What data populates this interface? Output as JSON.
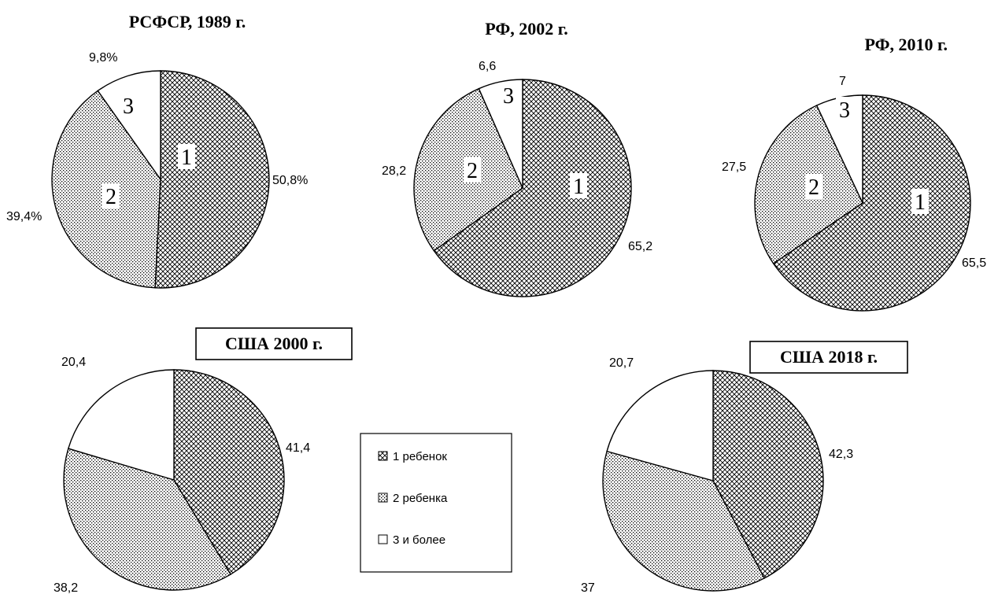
{
  "chart_data": [
    {
      "type": "pie",
      "title": "РСФСР,  1989 г.",
      "title_boxed": false,
      "categories": [
        "1 ребенок",
        "2 ребенка",
        "3 и более"
      ],
      "values": [
        50.8,
        39.4,
        9.8
      ],
      "data_labels": [
        "50,8%",
        "39,4%",
        "9,8%"
      ],
      "slice_numbers": [
        "1",
        "2",
        "3"
      ]
    },
    {
      "type": "pie",
      "title": "РФ, 2002  г.",
      "title_boxed": false,
      "categories": [
        "1 ребенок",
        "2 ребенка",
        "3 и более"
      ],
      "values": [
        65.2,
        28.2,
        6.6
      ],
      "data_labels": [
        "65,2",
        "28,2",
        "6,6"
      ],
      "slice_numbers": [
        "1",
        "2",
        "3"
      ]
    },
    {
      "type": "pie",
      "title": "РФ, 2010  г.",
      "title_boxed": false,
      "categories": [
        "1 ребенок",
        "2 ребенка",
        "3 и более"
      ],
      "values": [
        65.5,
        27.5,
        7
      ],
      "data_labels": [
        "65,5",
        "27,5",
        "7"
      ],
      "slice_numbers": [
        "1",
        "2",
        "3"
      ]
    },
    {
      "type": "pie",
      "title": "США 2000 г.",
      "title_boxed": true,
      "categories": [
        "1 ребенок",
        "2 ребенка",
        "3 и более"
      ],
      "values": [
        41.4,
        38.2,
        20.4
      ],
      "data_labels": [
        "41,4",
        "38,2",
        "20,4"
      ],
      "slice_numbers": []
    },
    {
      "type": "pie",
      "title": "США 2018 г.",
      "title_boxed": true,
      "categories": [
        "1 ребенок",
        "2 ребенка",
        "3 и более"
      ],
      "values": [
        42.3,
        37,
        20.7
      ],
      "data_labels": [
        "42,3",
        "37",
        "20,7"
      ],
      "slice_numbers": []
    }
  ],
  "legend": {
    "items": [
      "1 ребенок",
      "2 ребенка",
      "3 и более"
    ]
  },
  "colors": {
    "stroke": "#000000",
    "background": "#ffffff"
  }
}
